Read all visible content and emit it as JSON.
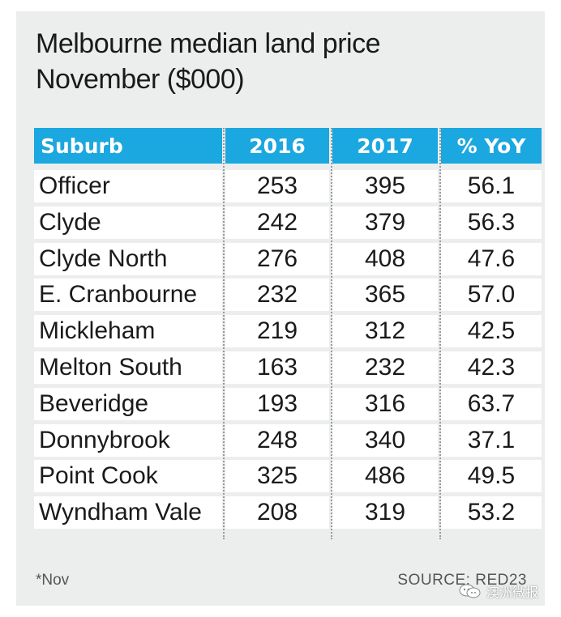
{
  "chart_data": {
    "type": "table",
    "title": "Melbourne median land price",
    "subtitle": "November ($000)",
    "columns": [
      "Suburb",
      "2016",
      "2017",
      "% YoY"
    ],
    "rows": [
      [
        "Officer",
        "253",
        "395",
        "56.1"
      ],
      [
        "Clyde",
        "242",
        "379",
        "56.3"
      ],
      [
        "Clyde North",
        "276",
        "408",
        "47.6"
      ],
      [
        "E. Cranbourne",
        "232",
        "365",
        "57.0"
      ],
      [
        "Mickleham",
        "219",
        "312",
        "42.5"
      ],
      [
        "Melton South",
        "163",
        "232",
        "42.3"
      ],
      [
        "Beveridge",
        "193",
        "316",
        "63.7"
      ],
      [
        "Donnybrook",
        "248",
        "340",
        "37.1"
      ],
      [
        "Point Cook",
        "325",
        "486",
        "49.5"
      ],
      [
        "Wyndham Vale",
        "208",
        "319",
        "53.2"
      ]
    ],
    "header_color": "#1ba7df",
    "background_color": "#eceded"
  },
  "footnote": "*Nov",
  "source": "SOURCE: RED23",
  "watermark": {
    "text": "澳洲微报",
    "icon": "wechat-icon"
  }
}
